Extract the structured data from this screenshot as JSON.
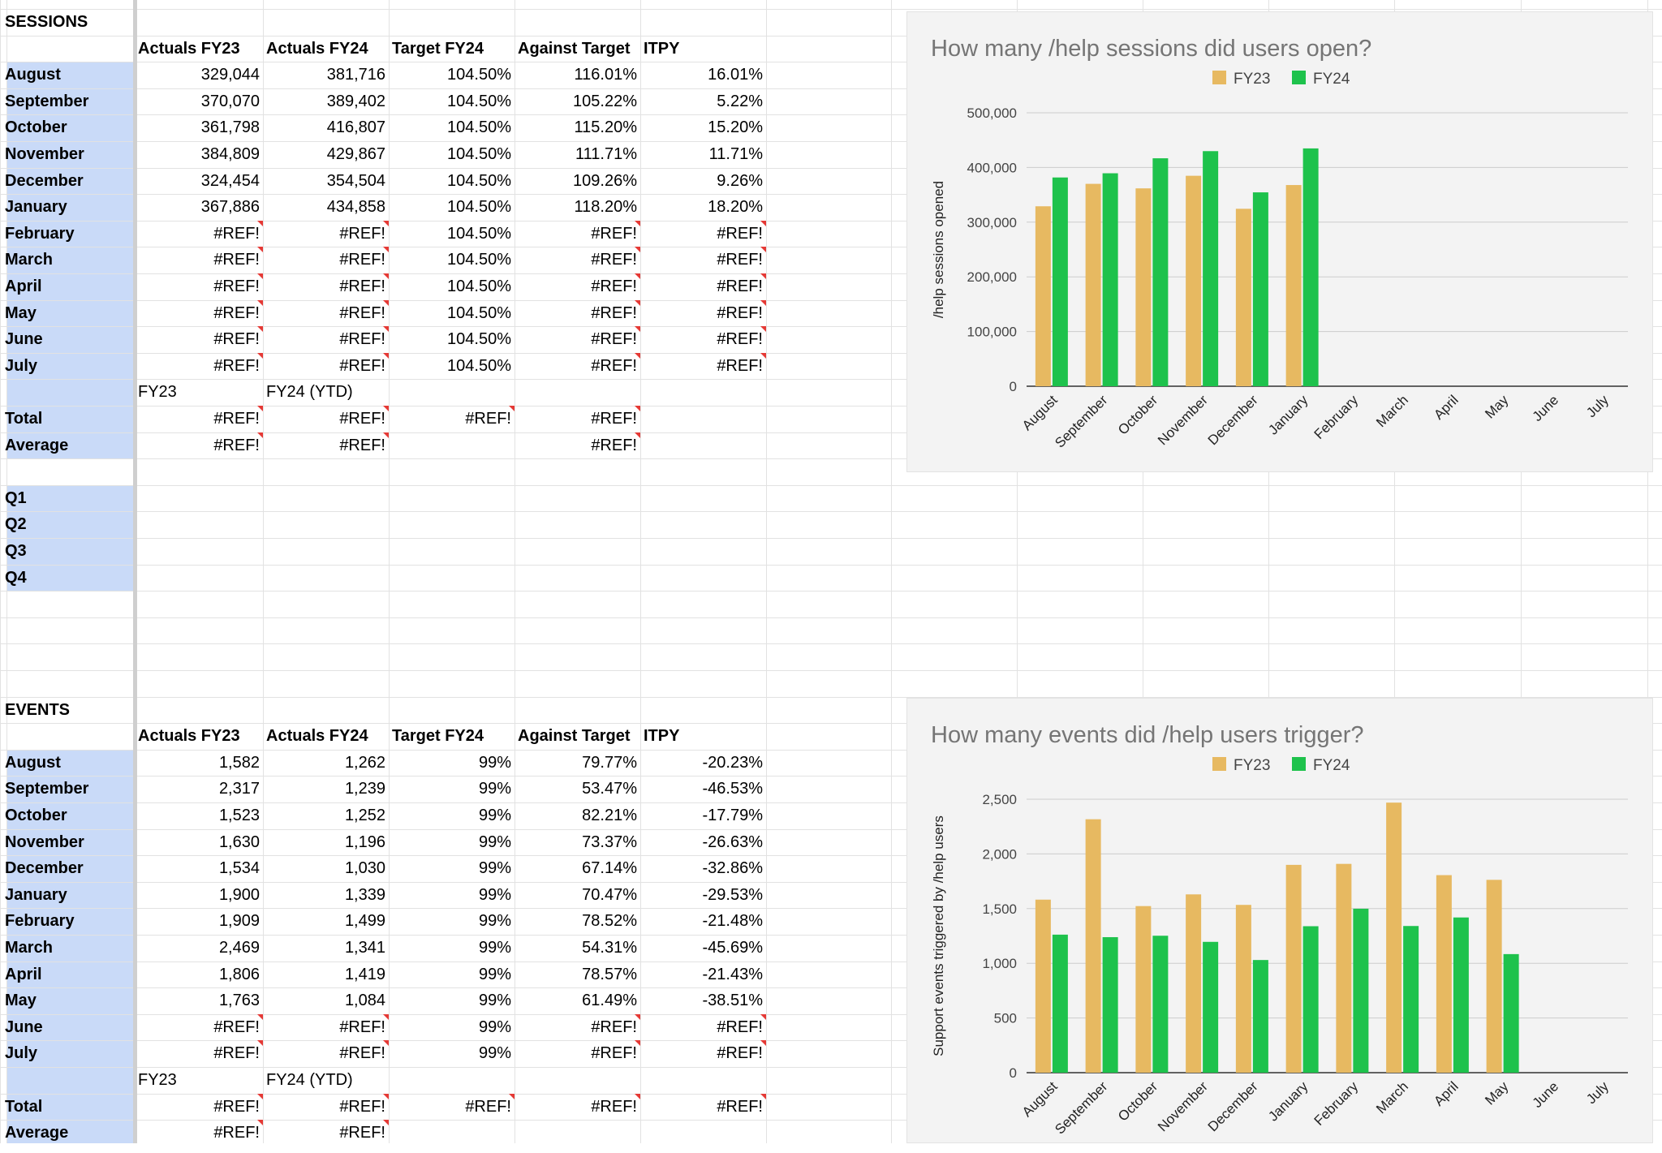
{
  "colors": {
    "row_header_bg": "#c9daf8",
    "fy23": "#e7b961",
    "fy24": "#1ec24c",
    "error_marker": "#e53935",
    "chart_bg": "#f3f3f3"
  },
  "sessions": {
    "title": "SESSIONS",
    "headers": [
      "Actuals FY23",
      "Actuals FY24",
      "Target FY24",
      "Against Target",
      "ITPY"
    ],
    "rows": [
      {
        "month": "August",
        "cells": [
          "329,044",
          "381,716",
          "104.50%",
          "116.01%",
          "16.01%"
        ]
      },
      {
        "month": "September",
        "cells": [
          "370,070",
          "389,402",
          "104.50%",
          "105.22%",
          "5.22%"
        ]
      },
      {
        "month": "October",
        "cells": [
          "361,798",
          "416,807",
          "104.50%",
          "115.20%",
          "15.20%"
        ]
      },
      {
        "month": "November",
        "cells": [
          "384,809",
          "429,867",
          "104.50%",
          "111.71%",
          "11.71%"
        ]
      },
      {
        "month": "December",
        "cells": [
          "324,454",
          "354,504",
          "104.50%",
          "109.26%",
          "9.26%"
        ]
      },
      {
        "month": "January",
        "cells": [
          "367,886",
          "434,858",
          "104.50%",
          "118.20%",
          "18.20%"
        ]
      },
      {
        "month": "February",
        "cells": [
          "#REF!",
          "#REF!",
          "104.50%",
          "#REF!",
          "#REF!"
        ]
      },
      {
        "month": "March",
        "cells": [
          "#REF!",
          "#REF!",
          "104.50%",
          "#REF!",
          "#REF!"
        ]
      },
      {
        "month": "April",
        "cells": [
          "#REF!",
          "#REF!",
          "104.50%",
          "#REF!",
          "#REF!"
        ]
      },
      {
        "month": "May",
        "cells": [
          "#REF!",
          "#REF!",
          "104.50%",
          "#REF!",
          "#REF!"
        ]
      },
      {
        "month": "June",
        "cells": [
          "#REF!",
          "#REF!",
          "104.50%",
          "#REF!",
          "#REF!"
        ]
      },
      {
        "month": "July",
        "cells": [
          "#REF!",
          "#REF!",
          "104.50%",
          "#REF!",
          "#REF!"
        ]
      }
    ],
    "summary_subheaders": [
      "FY23",
      "FY24 (YTD)"
    ],
    "summary_rows": [
      {
        "label": "Total",
        "cells": [
          "#REF!",
          "#REF!",
          "#REF!",
          "#REF!",
          ""
        ]
      },
      {
        "label": "Average",
        "cells": [
          "#REF!",
          "#REF!",
          "",
          "#REF!",
          ""
        ]
      }
    ],
    "quarters": [
      "Q1",
      "Q2",
      "Q3",
      "Q4"
    ]
  },
  "events": {
    "title": "EVENTS",
    "headers": [
      "Actuals FY23",
      "Actuals FY24",
      "Target FY24",
      "Against Target",
      "ITPY"
    ],
    "rows": [
      {
        "month": "August",
        "cells": [
          "1,582",
          "1,262",
          "99%",
          "79.77%",
          "-20.23%"
        ]
      },
      {
        "month": "September",
        "cells": [
          "2,317",
          "1,239",
          "99%",
          "53.47%",
          "-46.53%"
        ]
      },
      {
        "month": "October",
        "cells": [
          "1,523",
          "1,252",
          "99%",
          "82.21%",
          "-17.79%"
        ]
      },
      {
        "month": "November",
        "cells": [
          "1,630",
          "1,196",
          "99%",
          "73.37%",
          "-26.63%"
        ]
      },
      {
        "month": "December",
        "cells": [
          "1,534",
          "1,030",
          "99%",
          "67.14%",
          "-32.86%"
        ]
      },
      {
        "month": "January",
        "cells": [
          "1,900",
          "1,339",
          "99%",
          "70.47%",
          "-29.53%"
        ]
      },
      {
        "month": "February",
        "cells": [
          "1,909",
          "1,499",
          "99%",
          "78.52%",
          "-21.48%"
        ]
      },
      {
        "month": "March",
        "cells": [
          "2,469",
          "1,341",
          "99%",
          "54.31%",
          "-45.69%"
        ]
      },
      {
        "month": "April",
        "cells": [
          "1,806",
          "1,419",
          "99%",
          "78.57%",
          "-21.43%"
        ]
      },
      {
        "month": "May",
        "cells": [
          "1,763",
          "1,084",
          "99%",
          "61.49%",
          "-38.51%"
        ]
      },
      {
        "month": "June",
        "cells": [
          "#REF!",
          "#REF!",
          "99%",
          "#REF!",
          "#REF!"
        ]
      },
      {
        "month": "July",
        "cells": [
          "#REF!",
          "#REF!",
          "99%",
          "#REF!",
          "#REF!"
        ]
      }
    ],
    "summary_subheaders": [
      "FY23",
      "FY24 (YTD)"
    ],
    "summary_rows": [
      {
        "label": "Total",
        "cells": [
          "#REF!",
          "#REF!",
          "#REF!",
          "#REF!",
          "#REF!"
        ]
      },
      {
        "label": "Average",
        "cells": [
          "#REF!",
          "#REF!",
          "",
          "",
          ""
        ]
      }
    ]
  },
  "chart_data": [
    {
      "type": "bar",
      "title": "How many /help sessions did users open?",
      "xlabel": "",
      "ylabel": "/help sessions opened",
      "categories": [
        "August",
        "September",
        "October",
        "November",
        "December",
        "January",
        "February",
        "March",
        "April",
        "May",
        "June",
        "July"
      ],
      "series": [
        {
          "name": "FY23",
          "values": [
            329044,
            370070,
            361798,
            384809,
            324454,
            367886,
            null,
            null,
            null,
            null,
            null,
            null
          ]
        },
        {
          "name": "FY24",
          "values": [
            381716,
            389402,
            416807,
            429867,
            354504,
            434858,
            null,
            null,
            null,
            null,
            null,
            null
          ]
        }
      ],
      "ylim": [
        0,
        500000
      ],
      "yticks": [
        "0",
        "100,000",
        "200,000",
        "300,000",
        "400,000",
        "500,000"
      ],
      "legend": "top",
      "grid": true
    },
    {
      "type": "bar",
      "title": "How many events did /help users trigger?",
      "xlabel": "",
      "ylabel": "Support events triggered by /help users",
      "categories": [
        "August",
        "September",
        "October",
        "November",
        "December",
        "January",
        "February",
        "March",
        "April",
        "May",
        "June",
        "July"
      ],
      "series": [
        {
          "name": "FY23",
          "values": [
            1582,
            2317,
            1523,
            1630,
            1534,
            1900,
            1909,
            2469,
            1806,
            1763,
            null,
            null
          ]
        },
        {
          "name": "FY24",
          "values": [
            1262,
            1239,
            1252,
            1196,
            1030,
            1339,
            1499,
            1341,
            1419,
            1084,
            null,
            null
          ]
        }
      ],
      "ylim": [
        0,
        2500
      ],
      "yticks": [
        "0",
        "500",
        "1,000",
        "1,500",
        "2,000",
        "2,500"
      ],
      "legend": "top",
      "grid": true
    }
  ]
}
